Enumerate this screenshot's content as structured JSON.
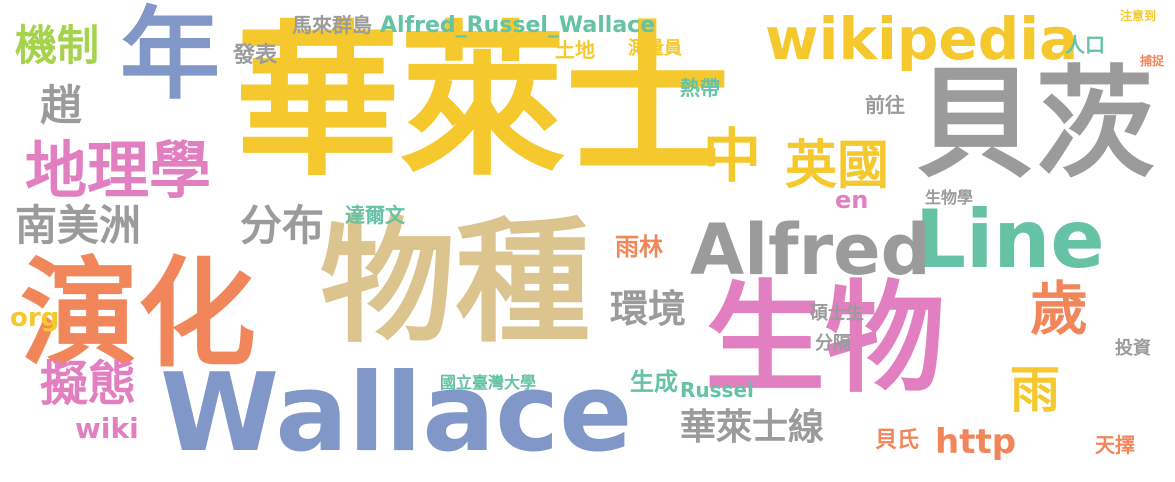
{
  "palette": {
    "yellow": "#f5c92e",
    "gray": "#9b9b9b",
    "blue": "#8197c8",
    "pink": "#e27fc0",
    "orange": "#f2865b",
    "tan": "#dcc48e",
    "green": "#66c2a5",
    "lime": "#a5d34d"
  },
  "words": [
    "華萊士",
    "物種",
    "生物",
    "演化",
    "Wallace",
    "貝茨",
    "年",
    "wikipedia",
    "Line",
    "Alfred",
    "地理學",
    "英國",
    "中",
    "歲",
    "擬態",
    "南美洲",
    "分布",
    "環境",
    "機制",
    "雨",
    "趙",
    "華萊士線",
    "http",
    "Alfred_Russel_Wallace",
    "發表",
    "馬來群島",
    "土地",
    "測量員",
    "熱帶",
    "人口",
    "達爾文",
    "雨林",
    "生成",
    "Russel",
    "wiki",
    "org",
    "en",
    "前往",
    "生物學",
    "碩士生",
    "分隔",
    "國立臺灣大學",
    "貝氏",
    "天擇",
    "投資",
    "注意到",
    "捕捉"
  ]
}
